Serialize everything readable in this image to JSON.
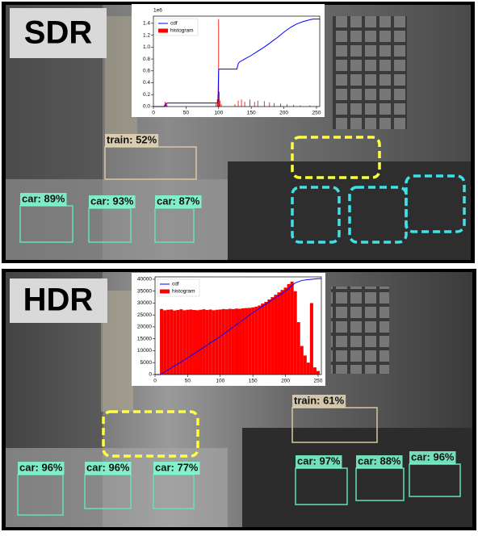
{
  "chart_data": [
    {
      "type": "combo",
      "legend": "upper left",
      "y_offset_label": "1e6",
      "xlim": [
        0,
        255
      ],
      "xticks": [
        0,
        50,
        100,
        150,
        200,
        250
      ],
      "ylim": [
        0,
        1.52
      ],
      "yticks": [
        {
          "value": 0,
          "label": "0.0"
        },
        0.2,
        0.4,
        0.6,
        0.8,
        {
          "value": 1,
          "label": "1.0"
        },
        1.2,
        1.4
      ],
      "series": [
        {
          "name": "cdf",
          "type": "line",
          "color": "#0000ff",
          "x": [
            0,
            17,
            18,
            20,
            22,
            98,
            99,
            100,
            101,
            128,
            130,
            132,
            140,
            150,
            160,
            170,
            180,
            190,
            200,
            210,
            220,
            230,
            240,
            245,
            255
          ],
          "values": [
            0,
            0,
            0.03,
            0.05,
            0.06,
            0.06,
            0.1,
            0.62,
            0.63,
            0.63,
            0.72,
            0.75,
            0.8,
            0.86,
            0.93,
            1.0,
            1.08,
            1.16,
            1.25,
            1.33,
            1.39,
            1.43,
            1.46,
            1.47,
            1.47
          ]
        },
        {
          "name": "histogram",
          "type": "bar",
          "color": "#ff0000",
          "x": [
            17,
            18,
            19,
            20,
            21,
            96,
            98,
            99,
            100,
            101,
            102,
            104,
            125,
            130,
            135,
            140,
            148,
            155,
            160,
            170,
            178,
            185,
            195,
            205,
            215,
            225,
            240,
            250
          ],
          "values": [
            0.03,
            0.08,
            0.05,
            0.07,
            0.02,
            0.05,
            0.12,
            0.2,
            1.47,
            0.25,
            0.1,
            0.04,
            0.04,
            0.1,
            0.12,
            0.08,
            0.12,
            0.08,
            0.1,
            0.09,
            0.07,
            0.06,
            0.05,
            0.04,
            0.03,
            0.02,
            0.02,
            0.01
          ]
        }
      ]
    },
    {
      "type": "combo",
      "legend": "upper left",
      "xlim": [
        0,
        255
      ],
      "xticks": [
        0,
        50,
        100,
        150,
        200,
        250
      ],
      "ylim": [
        0,
        41000
      ],
      "yticks": [
        0,
        5000,
        10000,
        15000,
        20000,
        25000,
        30000,
        35000,
        40000
      ],
      "series": [
        {
          "name": "cdf",
          "type": "line",
          "color": "#0000ff",
          "x": [
            0,
            8,
            50,
            100,
            150,
            200,
            215,
            225,
            240,
            250,
            255
          ],
          "values": [
            0,
            0,
            7000,
            16000,
            26000,
            35000,
            38500,
            39500,
            40000,
            40300,
            40300
          ]
        },
        {
          "name": "histogram",
          "type": "bar",
          "color": "#ff0000",
          "x": [
            10,
            15,
            20,
            25,
            30,
            35,
            40,
            45,
            50,
            55,
            60,
            65,
            70,
            75,
            80,
            85,
            90,
            95,
            100,
            105,
            110,
            115,
            120,
            125,
            130,
            135,
            140,
            145,
            150,
            155,
            160,
            165,
            170,
            175,
            180,
            185,
            190,
            195,
            200,
            205,
            210,
            215,
            220,
            225,
            230,
            235,
            240,
            245,
            250
          ],
          "values": [
            27500,
            27000,
            27200,
            27300,
            26900,
            27100,
            27400,
            27000,
            27200,
            27300,
            27100,
            27000,
            27200,
            27400,
            27100,
            27300,
            27000,
            27200,
            27300,
            27500,
            27400,
            27600,
            27500,
            27700,
            27600,
            27800,
            27900,
            28000,
            28200,
            28500,
            29000,
            29800,
            30500,
            31500,
            32500,
            33500,
            34500,
            35500,
            36500,
            38000,
            39000,
            35000,
            22000,
            12000,
            8000,
            5000,
            30000,
            3000,
            1500
          ]
        }
      ]
    }
  ],
  "panels": [
    {
      "title": "SDR",
      "detections": [
        {
          "label": "train: 52%"
        },
        {
          "label": "car: 89%"
        },
        {
          "label": "car: 93%"
        },
        {
          "label": "car: 87%"
        }
      ]
    },
    {
      "title": "HDR",
      "detections": [
        {
          "label": "car: 96%"
        },
        {
          "label": "car: 96%"
        },
        {
          "label": "car: 77%"
        },
        {
          "label": "train: 61%"
        },
        {
          "label": "car: 97%"
        },
        {
          "label": "car: 88%"
        },
        {
          "label": "car: 96%"
        }
      ]
    }
  ]
}
